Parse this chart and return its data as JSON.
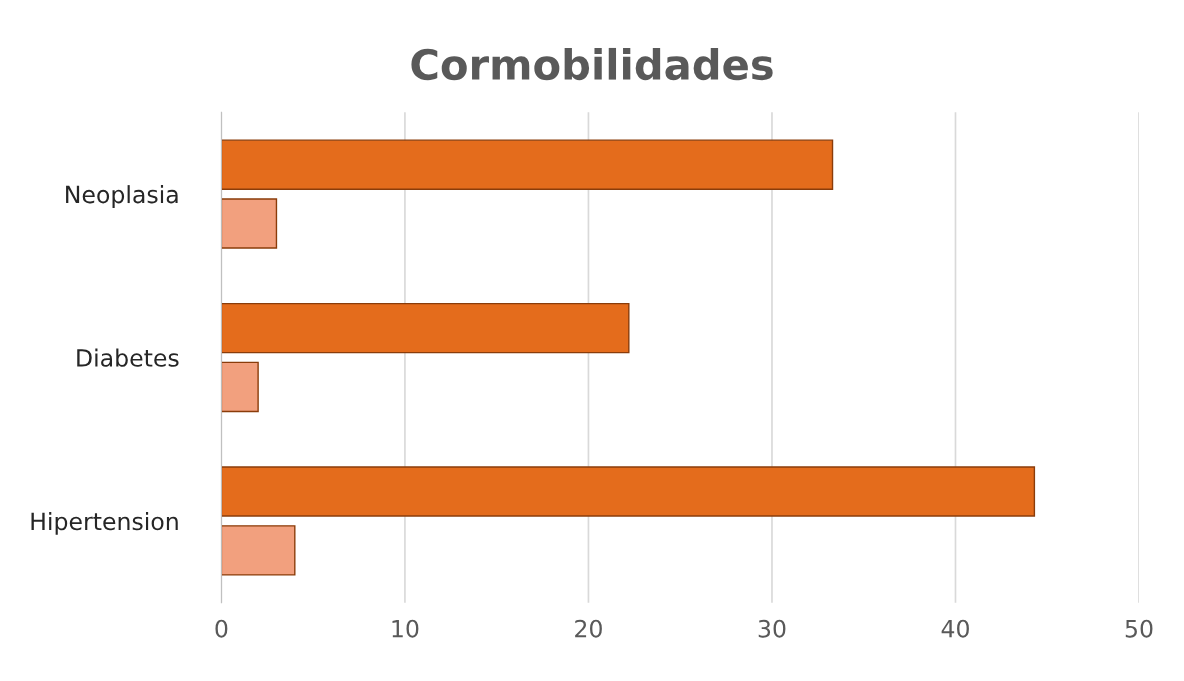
{
  "chart_data": {
    "type": "bar",
    "orientation": "horizontal",
    "title": "Cormobilidades",
    "categories": [
      "Neoplasia",
      "Diabetes",
      "Hipertension"
    ],
    "series": [
      {
        "color": "#e46c1c",
        "values": [
          33.3,
          22.2,
          44.3
        ]
      },
      {
        "color": "#f2a07e",
        "values": [
          3,
          2,
          4
        ]
      }
    ],
    "xlim": [
      0,
      50
    ],
    "xticks": [
      0,
      10,
      20,
      30,
      40,
      50
    ],
    "grid": "x"
  }
}
